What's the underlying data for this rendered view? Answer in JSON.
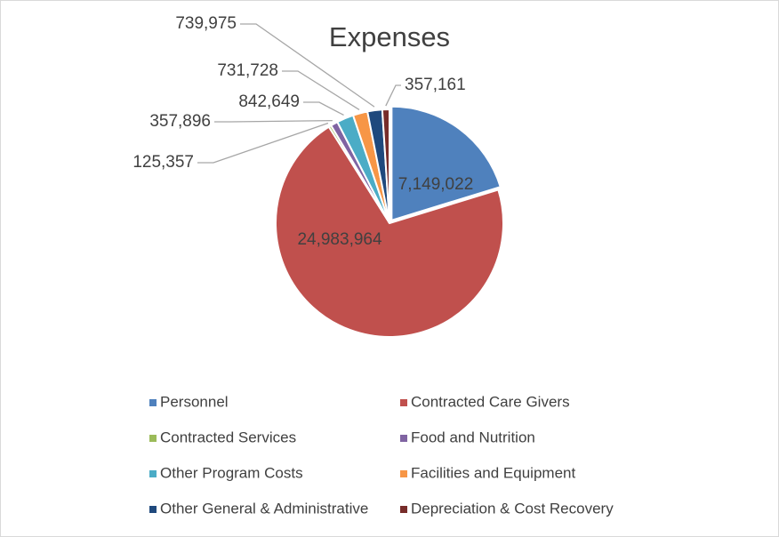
{
  "chart_data": {
    "type": "pie",
    "title": "Expenses",
    "categories": [
      "Personnel",
      "Contracted Care Givers",
      "Contracted Services",
      "Food and Nutrition",
      "Other Program Costs",
      "Facilities and Equipment",
      "Other General & Administrative",
      "Depreciation & Cost Recovery"
    ],
    "values": [
      7149022,
      24983964,
      125357,
      357896,
      842649,
      731728,
      739975,
      357161
    ],
    "value_labels": [
      "7,149,022",
      "24,983,964",
      "125,357",
      "357,896",
      "842,649",
      "731,728",
      "739,975",
      "357,161"
    ],
    "colors": [
      "#4f81bd",
      "#c0504d",
      "#9bbb59",
      "#8064a2",
      "#4bacc6",
      "#f79646",
      "#1f497d",
      "#772c2a"
    ],
    "legend": "bottom"
  }
}
